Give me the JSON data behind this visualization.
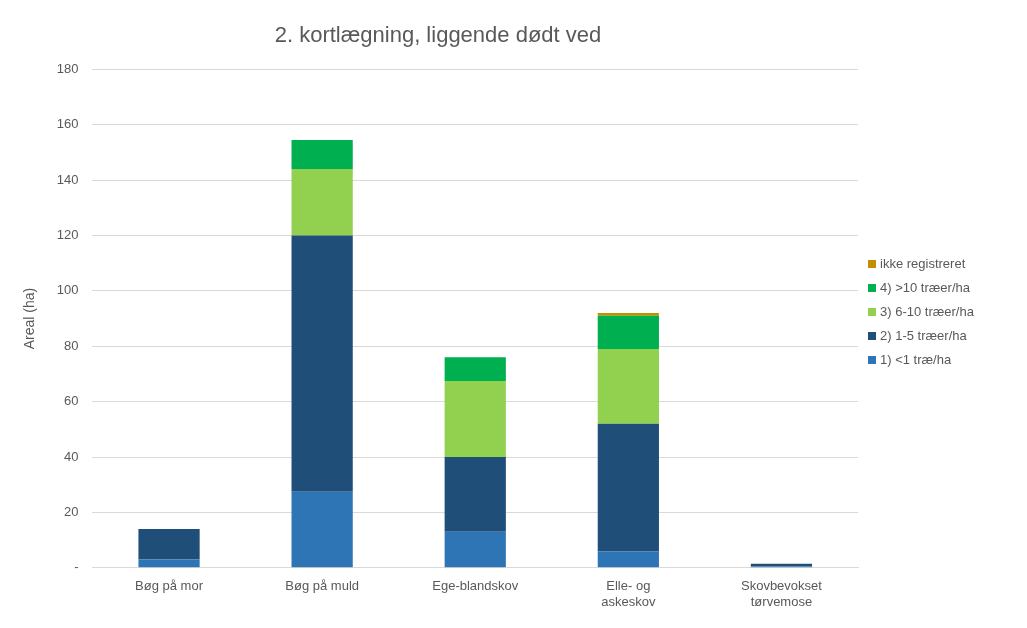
{
  "chart_data": {
    "type": "bar",
    "stacked": true,
    "title": "2. kortlægning, liggende dødt ved",
    "ylabel": "Areal (ha)",
    "categories": [
      "Bøg på mor",
      "Bøg på muld",
      "Ege-blandskov",
      "Elle- og askeskov",
      "Skovbevokset tørvemose"
    ],
    "series": [
      {
        "name": "1) <1 træ/ha",
        "color": "#2e75b6",
        "values": [
          3,
          27.5,
          13,
          6,
          0.5
        ]
      },
      {
        "name": "2) 1-5 træer/ha",
        "color": "#1f4e79",
        "values": [
          11,
          92.5,
          27,
          46,
          1
        ]
      },
      {
        "name": "3) 6-10 træer/ha",
        "color": "#92d050",
        "values": [
          0,
          24,
          27.5,
          27,
          0
        ]
      },
      {
        "name": "4) >10 træer/ha",
        "color": "#00b050",
        "values": [
          0,
          10.5,
          8.5,
          12,
          0
        ]
      },
      {
        "name": "ikke registreret",
        "color": "#c09000",
        "values": [
          0,
          0,
          0,
          1,
          0
        ]
      }
    ],
    "ylim": [
      0,
      180
    ],
    "yticks": [
      {
        "value": 0,
        "label": "-"
      },
      20,
      40,
      60,
      80,
      100,
      120,
      140,
      160,
      180
    ],
    "grid": "y",
    "legend": "right"
  }
}
